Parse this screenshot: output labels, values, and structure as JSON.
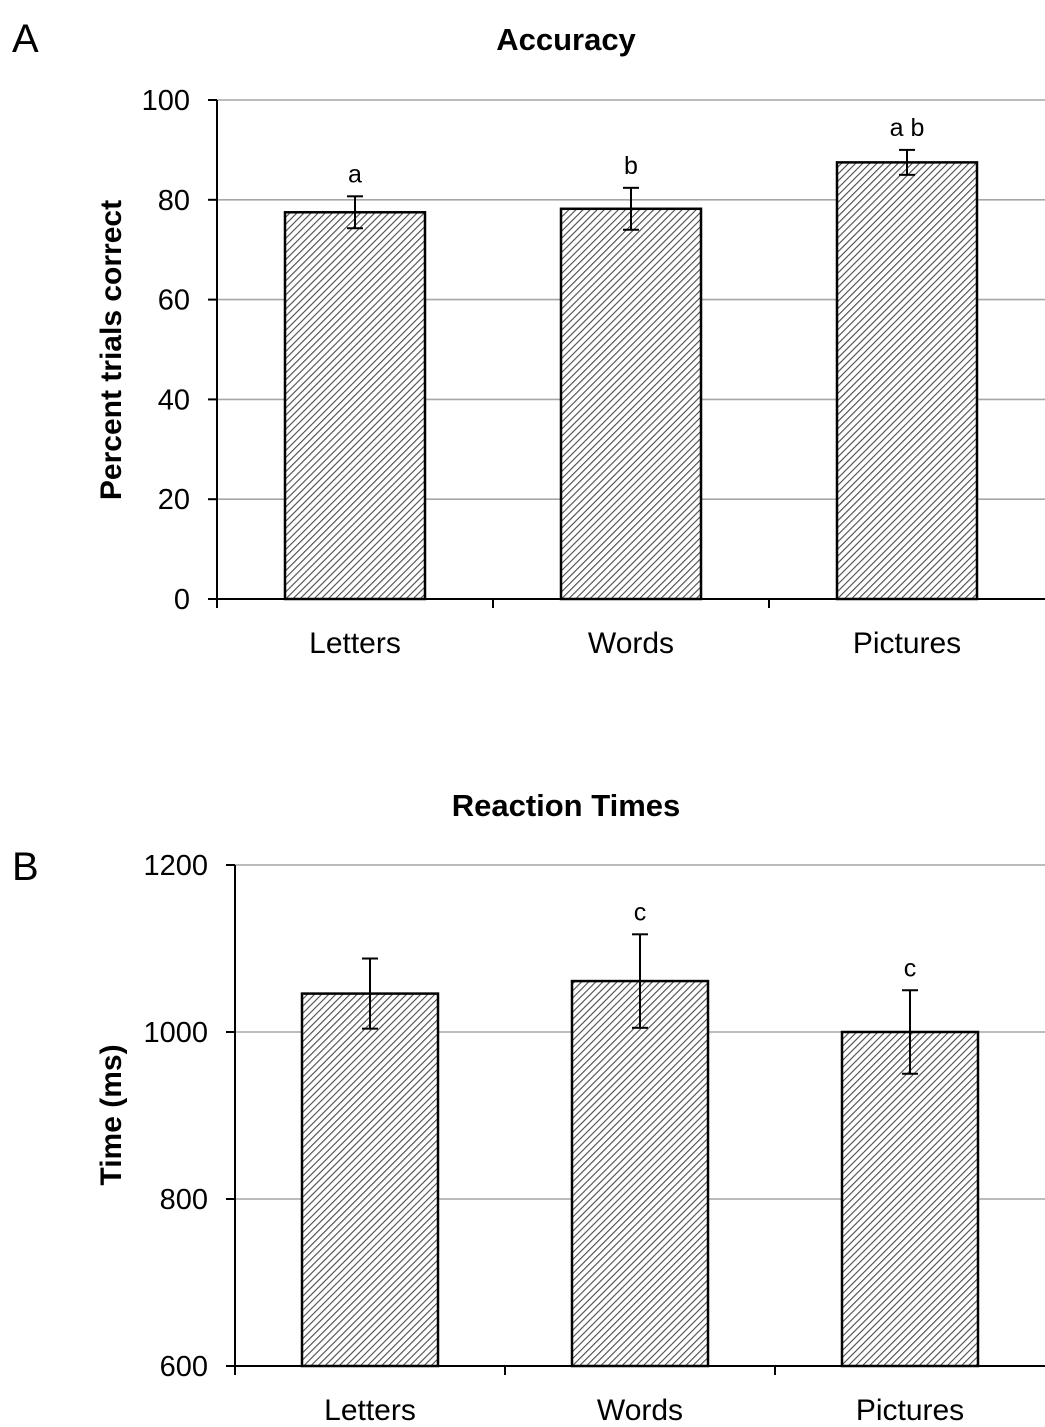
{
  "chart_data": [
    {
      "type": "bar",
      "panel_label": "A",
      "title": "Accuracy",
      "xlabel": "",
      "ylabel": "Percent trials correct",
      "ylim": [
        0,
        100
      ],
      "yticks": [
        0,
        20,
        40,
        60,
        80,
        100
      ],
      "ytick_labels": [
        "0",
        "20",
        "40",
        "60",
        "80",
        "100"
      ],
      "grid": true,
      "bar_fill": "diagonal hatch",
      "categories": [
        "Letters",
        "Words",
        "Pictures"
      ],
      "values": [
        77.5,
        78.2,
        87.5
      ],
      "error": [
        3.2,
        4.2,
        2.5
      ],
      "significance_labels": [
        "a",
        "b",
        "a b"
      ]
    },
    {
      "type": "bar",
      "panel_label": "B",
      "title": "Reaction Times",
      "xlabel": "",
      "ylabel": "Time (ms)",
      "ylim": [
        600,
        1200
      ],
      "yticks": [
        600,
        800,
        1000,
        1200
      ],
      "ytick_labels": [
        "600",
        "800",
        "1000",
        "1200"
      ],
      "grid": true,
      "bar_fill": "diagonal hatch",
      "categories": [
        "Letters",
        "Words",
        "Pictures"
      ],
      "values": [
        1046,
        1061,
        1000
      ],
      "error": [
        42,
        56,
        50
      ],
      "significance_labels": [
        "",
        "c",
        "c"
      ]
    }
  ],
  "colors": {
    "bar_outline": "#000000",
    "hatch": "#4a4a4a",
    "gridline": "#a6a6a6",
    "axis": "#000000"
  }
}
